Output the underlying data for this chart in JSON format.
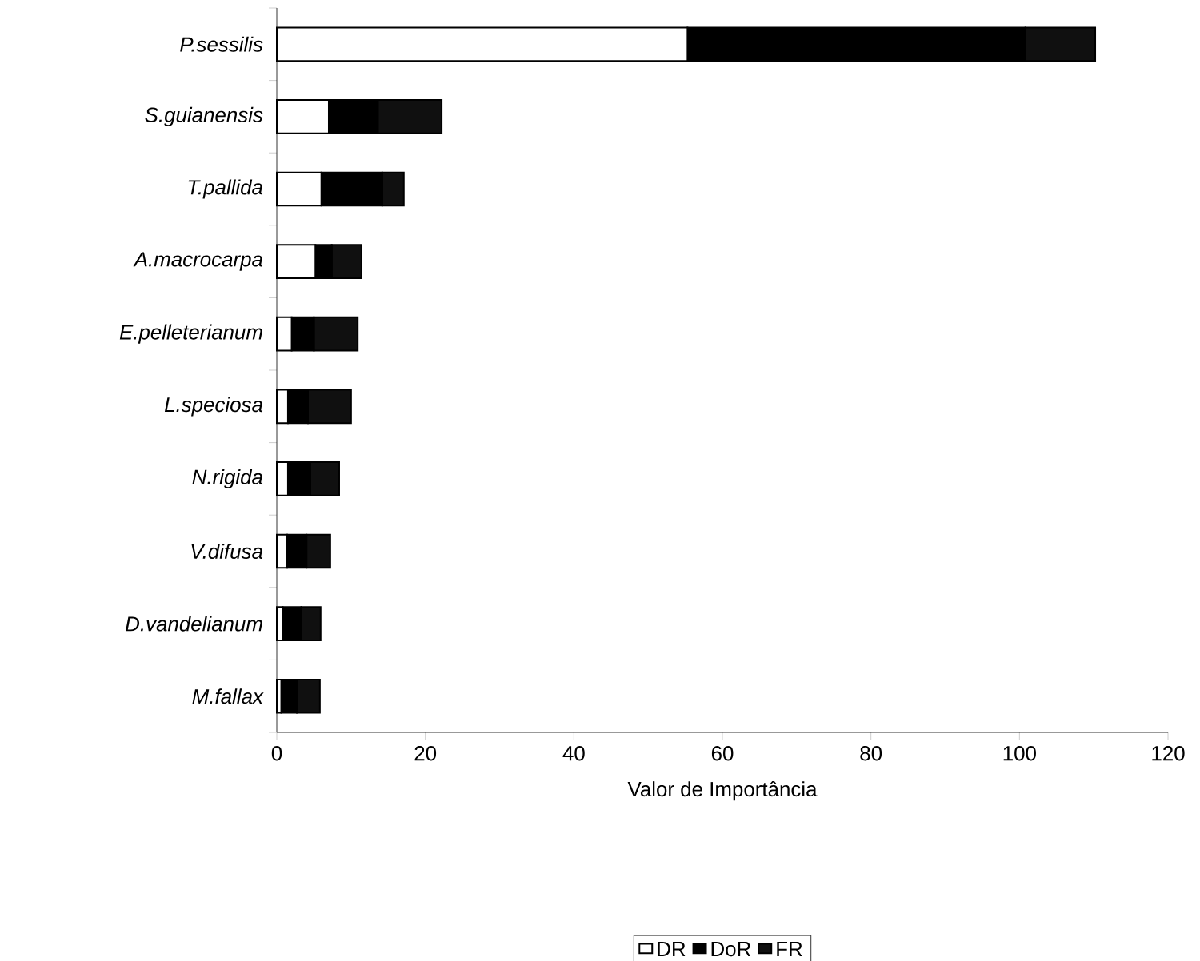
{
  "chart_data": {
    "type": "bar",
    "orientation": "horizontal",
    "stacked": true,
    "xlabel": "Valor de Importância",
    "categories": [
      "P.sessilis",
      "S.guianensis",
      "T.pallida",
      "A.macrocarpa",
      "E.pelleterianum",
      "L.speciosa",
      "N.rigida",
      "V.difusa",
      "D.vandelianum",
      "M.fallax"
    ],
    "series": [
      {
        "name": "DR",
        "color": "#ffffff",
        "values": [
          55.3,
          7.0,
          6.0,
          5.2,
          2.0,
          1.5,
          1.5,
          1.4,
          0.8,
          0.6
        ]
      },
      {
        "name": "DoR",
        "color": "#000000",
        "values": [
          45.5,
          6.6,
          8.2,
          2.2,
          3.0,
          2.7,
          3.0,
          2.6,
          2.5,
          2.1
        ]
      },
      {
        "name": "FR",
        "color": "#101010",
        "values": [
          9.4,
          8.6,
          2.9,
          4.0,
          5.9,
          5.8,
          3.9,
          3.2,
          2.6,
          3.1
        ]
      }
    ],
    "xlim": [
      0,
      120
    ],
    "xticks": [
      0,
      20,
      40,
      60,
      80,
      100,
      120
    ],
    "grid": false,
    "legend": "bottom"
  }
}
